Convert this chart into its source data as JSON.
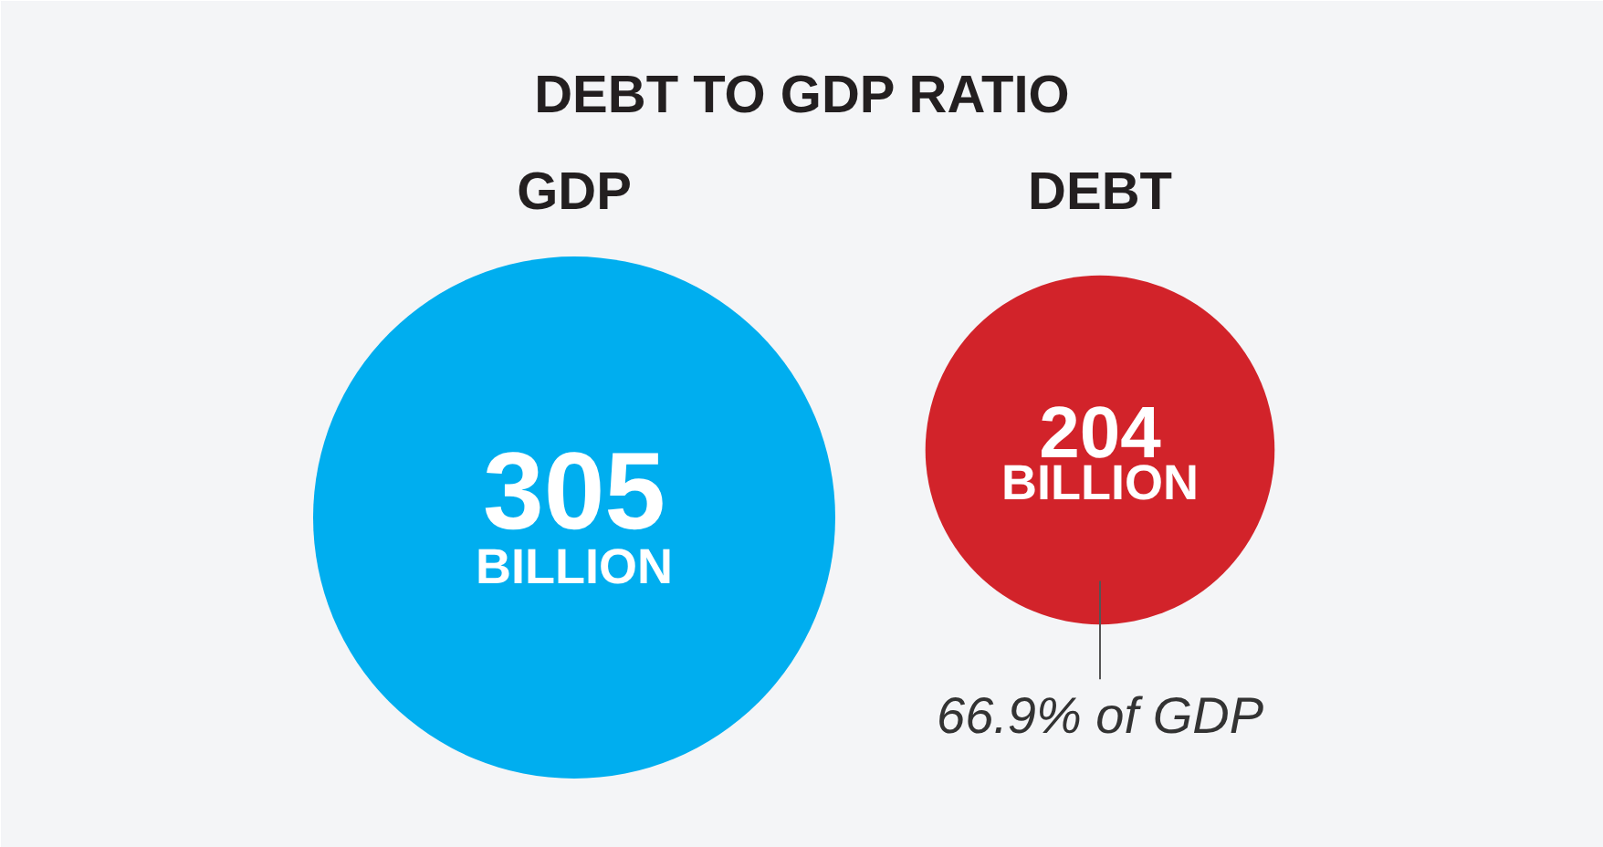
{
  "chart_data": {
    "type": "other",
    "title": "DEBT TO GDP RATIO",
    "categories": [
      "GDP",
      "DEBT"
    ],
    "values": [
      305,
      204
    ],
    "value_labels": [
      "305\nBILLION",
      "204\nBILLION"
    ],
    "colors": [
      "#00aeef",
      "#d2232a"
    ],
    "annotations": [
      "66.9% of GDP"
    ]
  }
}
